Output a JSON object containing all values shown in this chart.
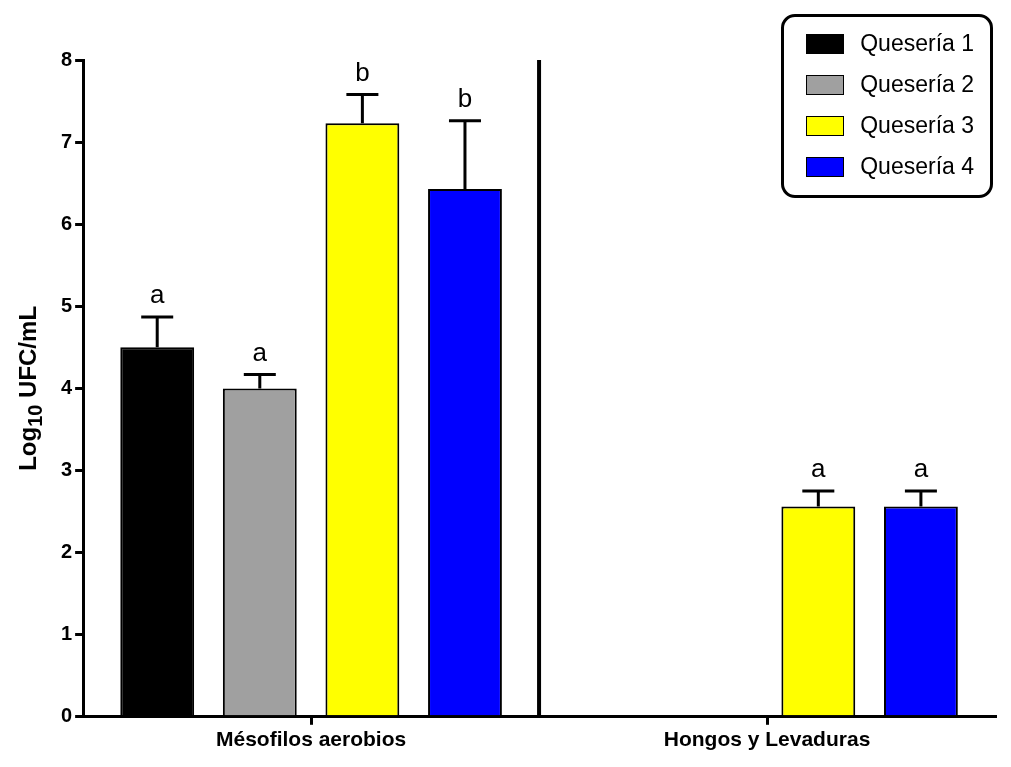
{
  "chart_data": {
    "type": "bar",
    "ylabel": "Log$_{10}$ UFC/mL",
    "categories": [
      "Mésofilos aerobios",
      "Hongos y Levaduras"
    ],
    "series": [
      {
        "name": "Quesería 1",
        "color": "#000000",
        "values": [
          4.5,
          null
        ],
        "errors": [
          [
            4.5,
            4.87
          ],
          null
        ],
        "value_labels": [
          "a",
          null
        ]
      },
      {
        "name": "Quesería 2",
        "color": "#a0a0a0",
        "values": [
          4.0,
          null
        ],
        "errors": [
          [
            4.0,
            4.17
          ],
          null
        ],
        "value_labels": [
          "a",
          null
        ]
      },
      {
        "name": "Quesería 3",
        "color": "#ffff00",
        "values": [
          7.23,
          2.56
        ],
        "errors": [
          [
            7.23,
            7.58
          ],
          [
            2.56,
            2.75
          ]
        ],
        "value_labels": [
          "b",
          "a"
        ]
      },
      {
        "name": "Quesería 4",
        "color": "#0000ff",
        "values": [
          6.43,
          2.56
        ],
        "errors": [
          [
            6.43,
            7.26
          ],
          [
            2.56,
            2.75
          ]
        ],
        "value_labels": [
          "b",
          "a"
        ]
      }
    ],
    "ylim": [
      0,
      8
    ],
    "yticks": [
      0,
      1,
      2,
      3,
      4,
      5,
      6,
      7,
      8
    ],
    "grid": false,
    "legend": "top right"
  }
}
